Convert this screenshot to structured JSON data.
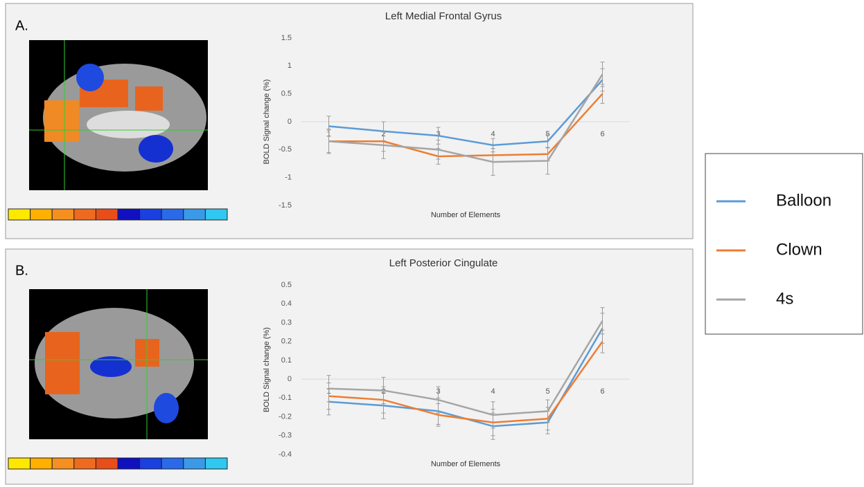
{
  "chart_data": [
    {
      "type": "line",
      "panel_label": "A.",
      "title": "Left Medial Frontal Gyrus",
      "x_label": "Number of Elements",
      "y_label": "BOLD Signal change (%)",
      "categories": [
        "1",
        "2",
        "3",
        "4",
        "5",
        "6"
      ],
      "ylim": [
        -1.5,
        1.5
      ],
      "yticks": [
        -1.5,
        -1,
        -0.5,
        0,
        0.5,
        1,
        1.5
      ],
      "legend": "right",
      "series": [
        {
          "name": "Balloon",
          "color": "#5b9bd5",
          "values": [
            -0.08,
            -0.17,
            -0.25,
            -0.42,
            -0.35,
            0.75
          ],
          "errors": [
            0.18,
            0.17,
            0.15,
            0.12,
            0.12,
            0.2
          ]
        },
        {
          "name": "Clown",
          "color": "#ed7d31",
          "values": [
            -0.35,
            -0.35,
            -0.62,
            -0.6,
            -0.58,
            0.5
          ],
          "errors": [
            0.2,
            0.18,
            0.14,
            0.12,
            0.12,
            0.17
          ]
        },
        {
          "name": "4s",
          "color": "#a5a5a5",
          "values": [
            -0.35,
            -0.42,
            -0.5,
            -0.72,
            -0.7,
            0.85
          ],
          "errors": [
            0.22,
            0.24,
            0.17,
            0.24,
            0.24,
            0.22
          ]
        }
      ]
    },
    {
      "type": "line",
      "panel_label": "B.",
      "title": "Left Posterior Cingulate",
      "x_label": "Number of Elements",
      "y_label": "BOLD Signal change (%)",
      "categories": [
        "1",
        "2",
        "3",
        "4",
        "5",
        "6"
      ],
      "ylim": [
        -0.4,
        0.5
      ],
      "yticks": [
        -0.4,
        -0.3,
        -0.2,
        -0.1,
        0,
        0.1,
        0.2,
        0.3,
        0.4,
        0.5
      ],
      "series": [
        {
          "color": "#5b9bd5",
          "values": [
            -0.12,
            -0.14,
            -0.17,
            -0.25,
            -0.23,
            0.27
          ],
          "errors": [
            0.07,
            0.07,
            0.07,
            0.07,
            0.06,
            0.08
          ]
        },
        {
          "color": "#ed7d31",
          "values": [
            -0.09,
            -0.11,
            -0.19,
            -0.23,
            -0.21,
            0.2
          ],
          "errors": [
            0.07,
            0.07,
            0.06,
            0.07,
            0.06,
            0.06
          ]
        },
        {
          "color": "#a5a5a5",
          "values": [
            -0.05,
            -0.06,
            -0.11,
            -0.19,
            -0.17,
            0.31
          ],
          "errors": [
            0.07,
            0.07,
            0.07,
            0.07,
            0.06,
            0.07
          ]
        }
      ]
    }
  ]
}
